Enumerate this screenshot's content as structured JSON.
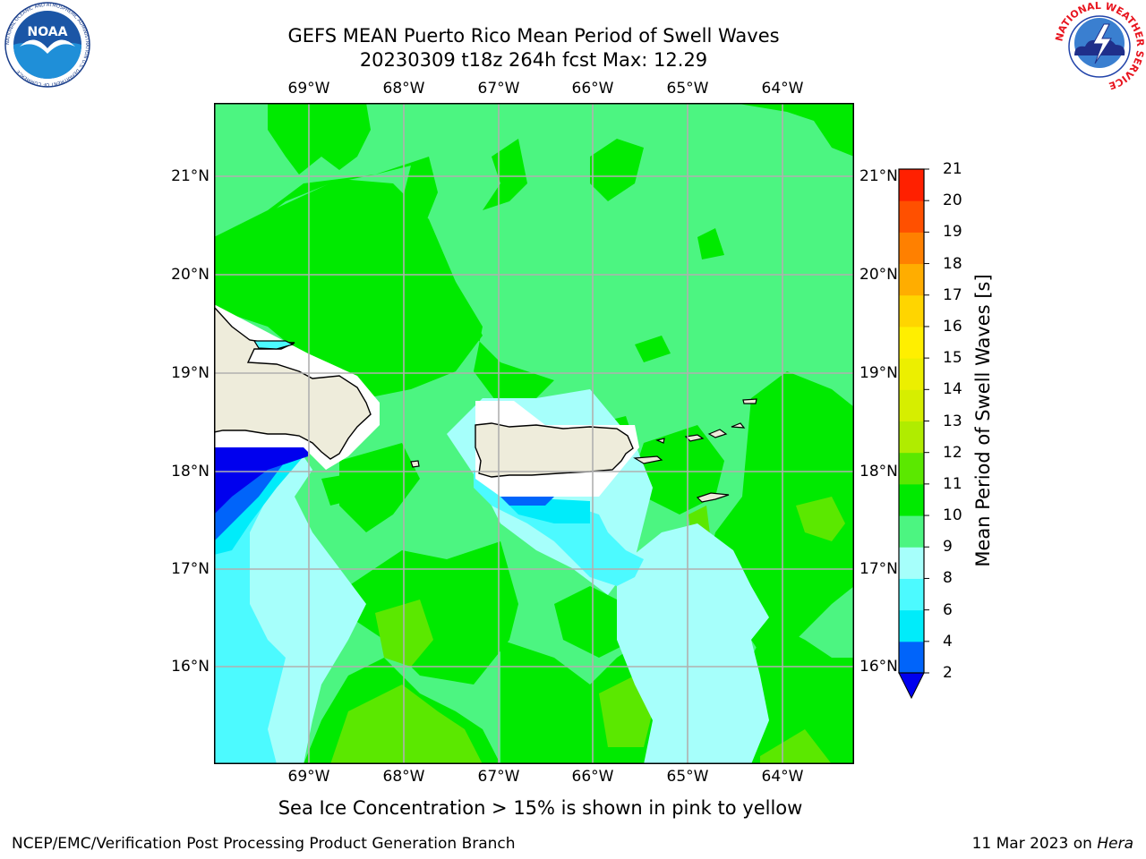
{
  "header": {
    "title_line1": "GEFS MEAN Puerto Rico Mean Period of Swell Waves",
    "title_line2": "20230309 t18z 264h fcst   Max: 12.29"
  },
  "logos": {
    "noaa": {
      "text": "NOAA",
      "ring_text": "NATIONAL OCEANIC AND ATMOSPHERIC ADMINISTRATION  U.S. DEPARTMENT OF COMMERCE"
    },
    "nws": {
      "ring_text": "NATIONAL WEATHER SERVICE"
    }
  },
  "map": {
    "lon_ticks": [
      "69°W",
      "68°W",
      "67°W",
      "66°W",
      "65°W",
      "64°W"
    ],
    "lat_ticks": [
      "21°N",
      "20°N",
      "19°N",
      "18°N",
      "17°N",
      "16°N"
    ],
    "land_color": "#eeecdb",
    "sea_background": "#4cf581"
  },
  "colorbar": {
    "title": "Mean Period of Swell Waves [s]",
    "levels": [
      "2",
      "4",
      "6",
      "8",
      "9",
      "10",
      "11",
      "12",
      "13",
      "14",
      "15",
      "16",
      "17",
      "18",
      "19",
      "20",
      "21"
    ],
    "colors": [
      "#0000ee",
      "#0064fa",
      "#00ecfa",
      "#4cfaff",
      "#a6fffb",
      "#4cf581",
      "#00ea00",
      "#5be800",
      "#b0ec00",
      "#d6ee00",
      "#ecef00",
      "#ffef00",
      "#ffd500",
      "#ffad00",
      "#ff8000",
      "#ff5000",
      "#ff2000",
      "#ff0000"
    ]
  },
  "footnote": "Sea Ice Concentration > 15% is shown in pink to yellow",
  "footer": {
    "left": "NCEP/EMC/Verification Post Processing Product Generation Branch",
    "right_prefix": "11 Mar 2023 on ",
    "right_host": "Hera"
  }
}
